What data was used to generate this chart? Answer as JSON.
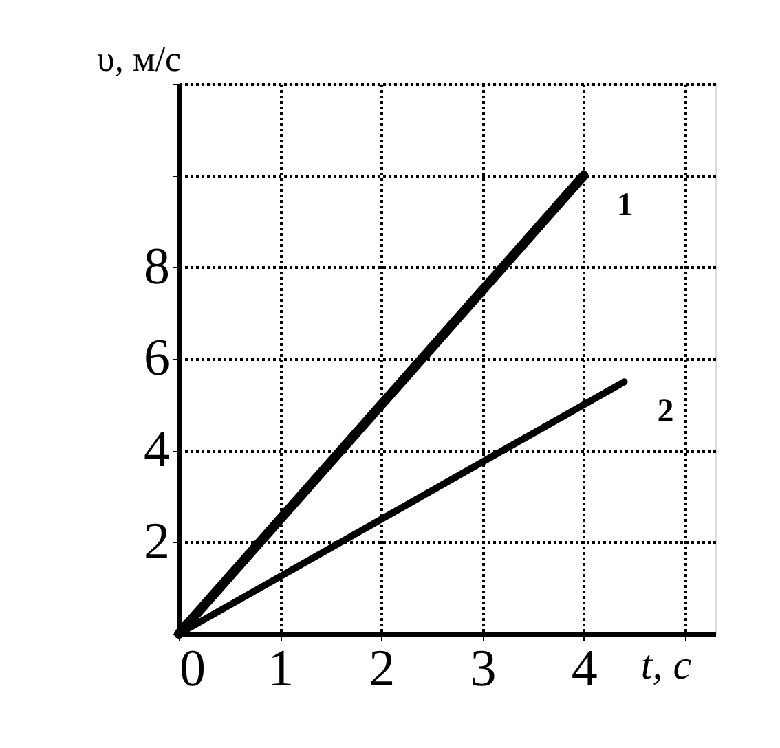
{
  "chart_data": {
    "type": "line",
    "xlabel": "t, с",
    "ylabel": "υ, м/с",
    "series": [
      {
        "name": "1",
        "color": "#000000",
        "x": [
          0,
          4
        ],
        "values": [
          0,
          10
        ]
      },
      {
        "name": "2",
        "color": "#000000",
        "x": [
          0,
          4.4
        ],
        "values": [
          0,
          5.5
        ]
      }
    ],
    "xlim": [
      0,
      5.3
    ],
    "ylim": [
      0,
      12
    ],
    "xticks": [
      0,
      1,
      2,
      3,
      4,
      {
        "value": 5,
        "label": null
      }
    ],
    "yticks": [
      {
        "value": 0,
        "label": null
      },
      2,
      4,
      6,
      8,
      {
        "value": 10,
        "label": null
      },
      {
        "value": 12,
        "label": null
      }
    ],
    "grid": true,
    "legend": false,
    "marker": "none",
    "line_style": "solid"
  }
}
